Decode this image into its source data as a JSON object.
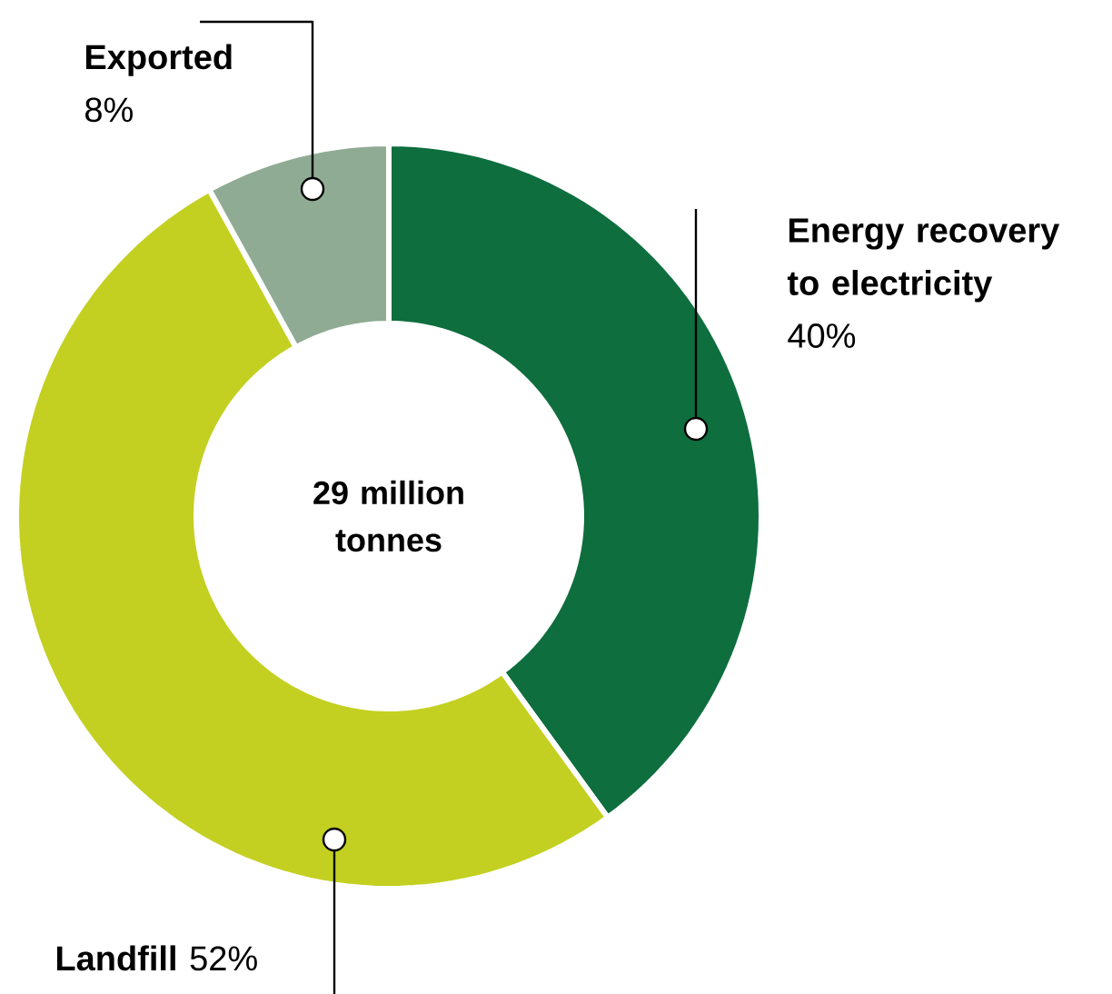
{
  "chart_data": {
    "type": "donut",
    "categories": [
      "Energy recovery to electricity",
      "Landfill",
      "Exported"
    ],
    "values": [
      40,
      52,
      8
    ],
    "colors": [
      "#0e6e3e",
      "#c3d021",
      "#8fab94"
    ],
    "value_labels": [
      "40%",
      "52%",
      "8%"
    ],
    "annotations": [
      "29 million tonnes"
    ]
  }
}
